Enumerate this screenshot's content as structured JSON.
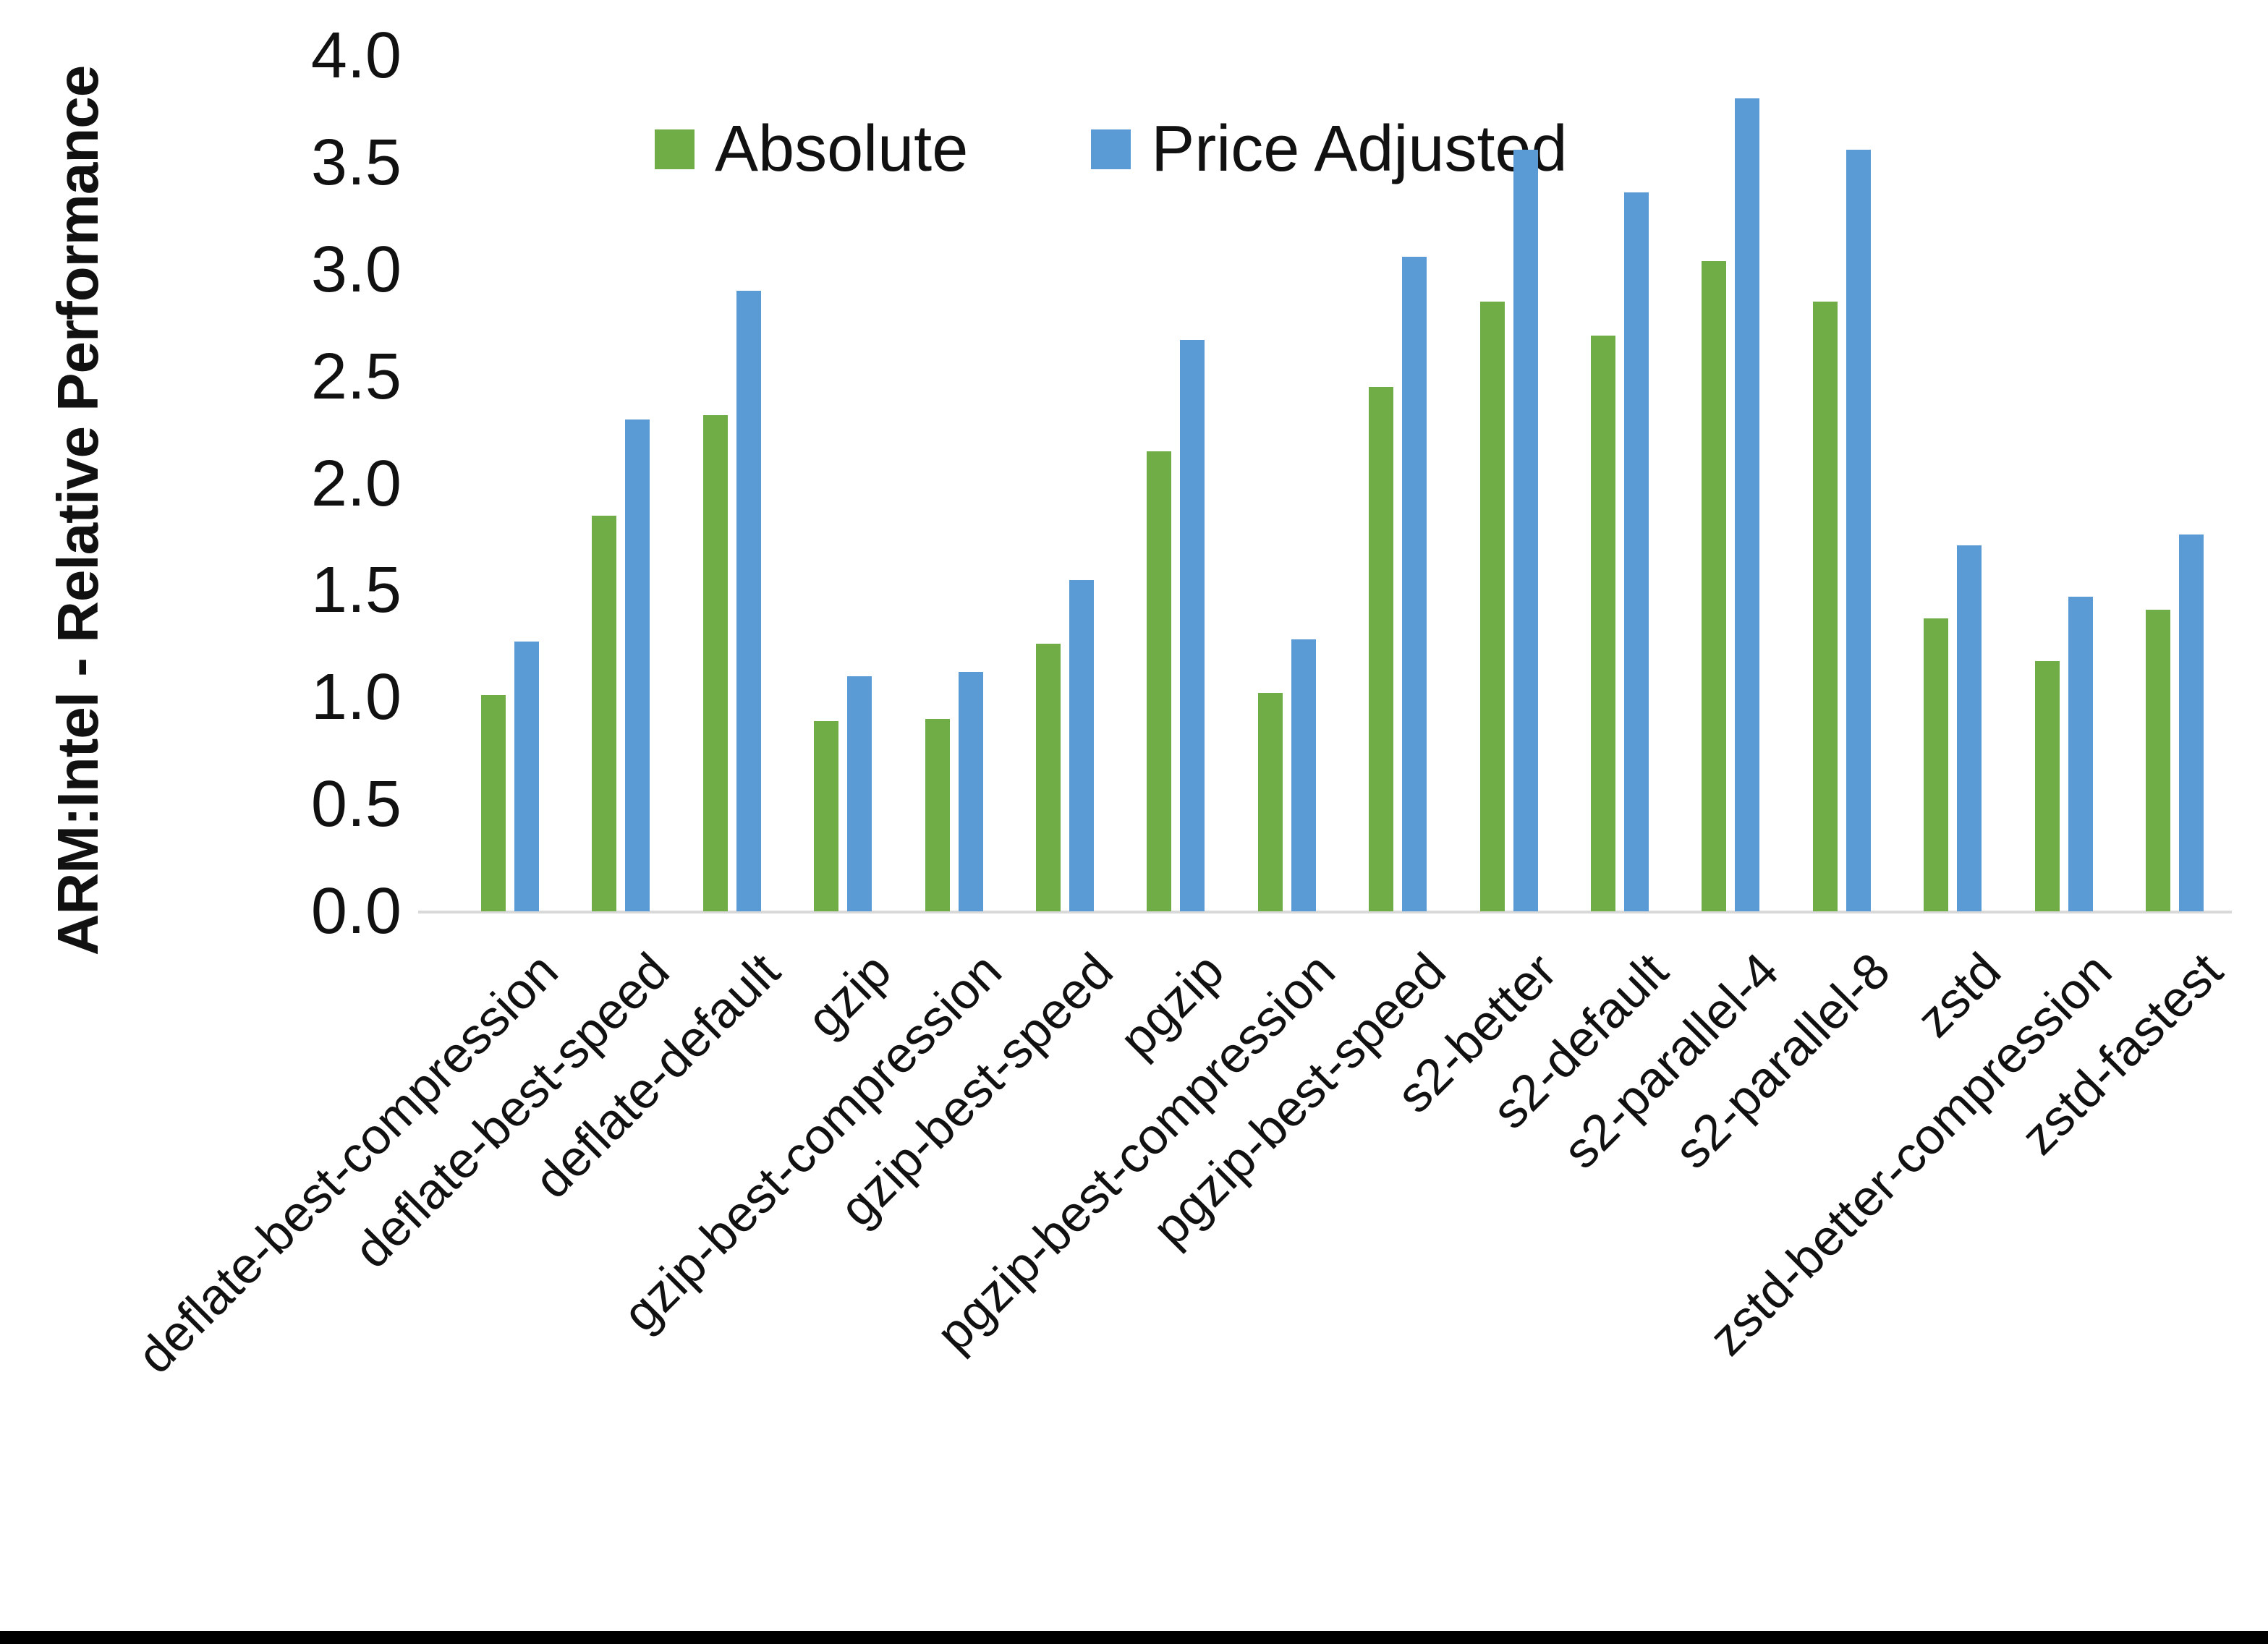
{
  "chart_data": {
    "type": "bar",
    "title": "",
    "ylabel": "ARM:Intel - Relative Performance",
    "xlabel": "",
    "ylim": [
      0.0,
      4.0
    ],
    "y_tick_labels": [
      "0.0",
      "0.5",
      "1.0",
      "1.5",
      "2.0",
      "2.5",
      "3.0",
      "3.5",
      "4.0"
    ],
    "grid": "off",
    "legend_position": "top",
    "categories": [
      "deflate-best-compression",
      "deflate-best-speed",
      "deflate-default",
      "gzip",
      "gzip-best-compression",
      "gzip-best-speed",
      "pgzip",
      "pgzip-best-compression",
      "pgzip-best-speed",
      "s2-better",
      "s2-default",
      "s2-parallel-4",
      "s2-parallel-8",
      "zstd",
      "zstd-better-compression",
      "zstd-fastest"
    ],
    "series": [
      {
        "name": "Absolute",
        "color": "#70AD47",
        "values": [
          1.01,
          1.85,
          2.32,
          0.89,
          0.9,
          1.25,
          2.15,
          1.02,
          2.45,
          2.85,
          2.69,
          3.04,
          2.85,
          1.37,
          1.17,
          1.41
        ]
      },
      {
        "name": "Price Adjusted",
        "color": "#5B9BD5",
        "values": [
          1.26,
          2.3,
          2.9,
          1.1,
          1.12,
          1.55,
          2.67,
          1.27,
          3.06,
          3.56,
          3.36,
          3.8,
          3.56,
          1.71,
          1.47,
          1.76
        ]
      }
    ],
    "axis_color": "#D9D9D9",
    "text_color": "#111111"
  }
}
